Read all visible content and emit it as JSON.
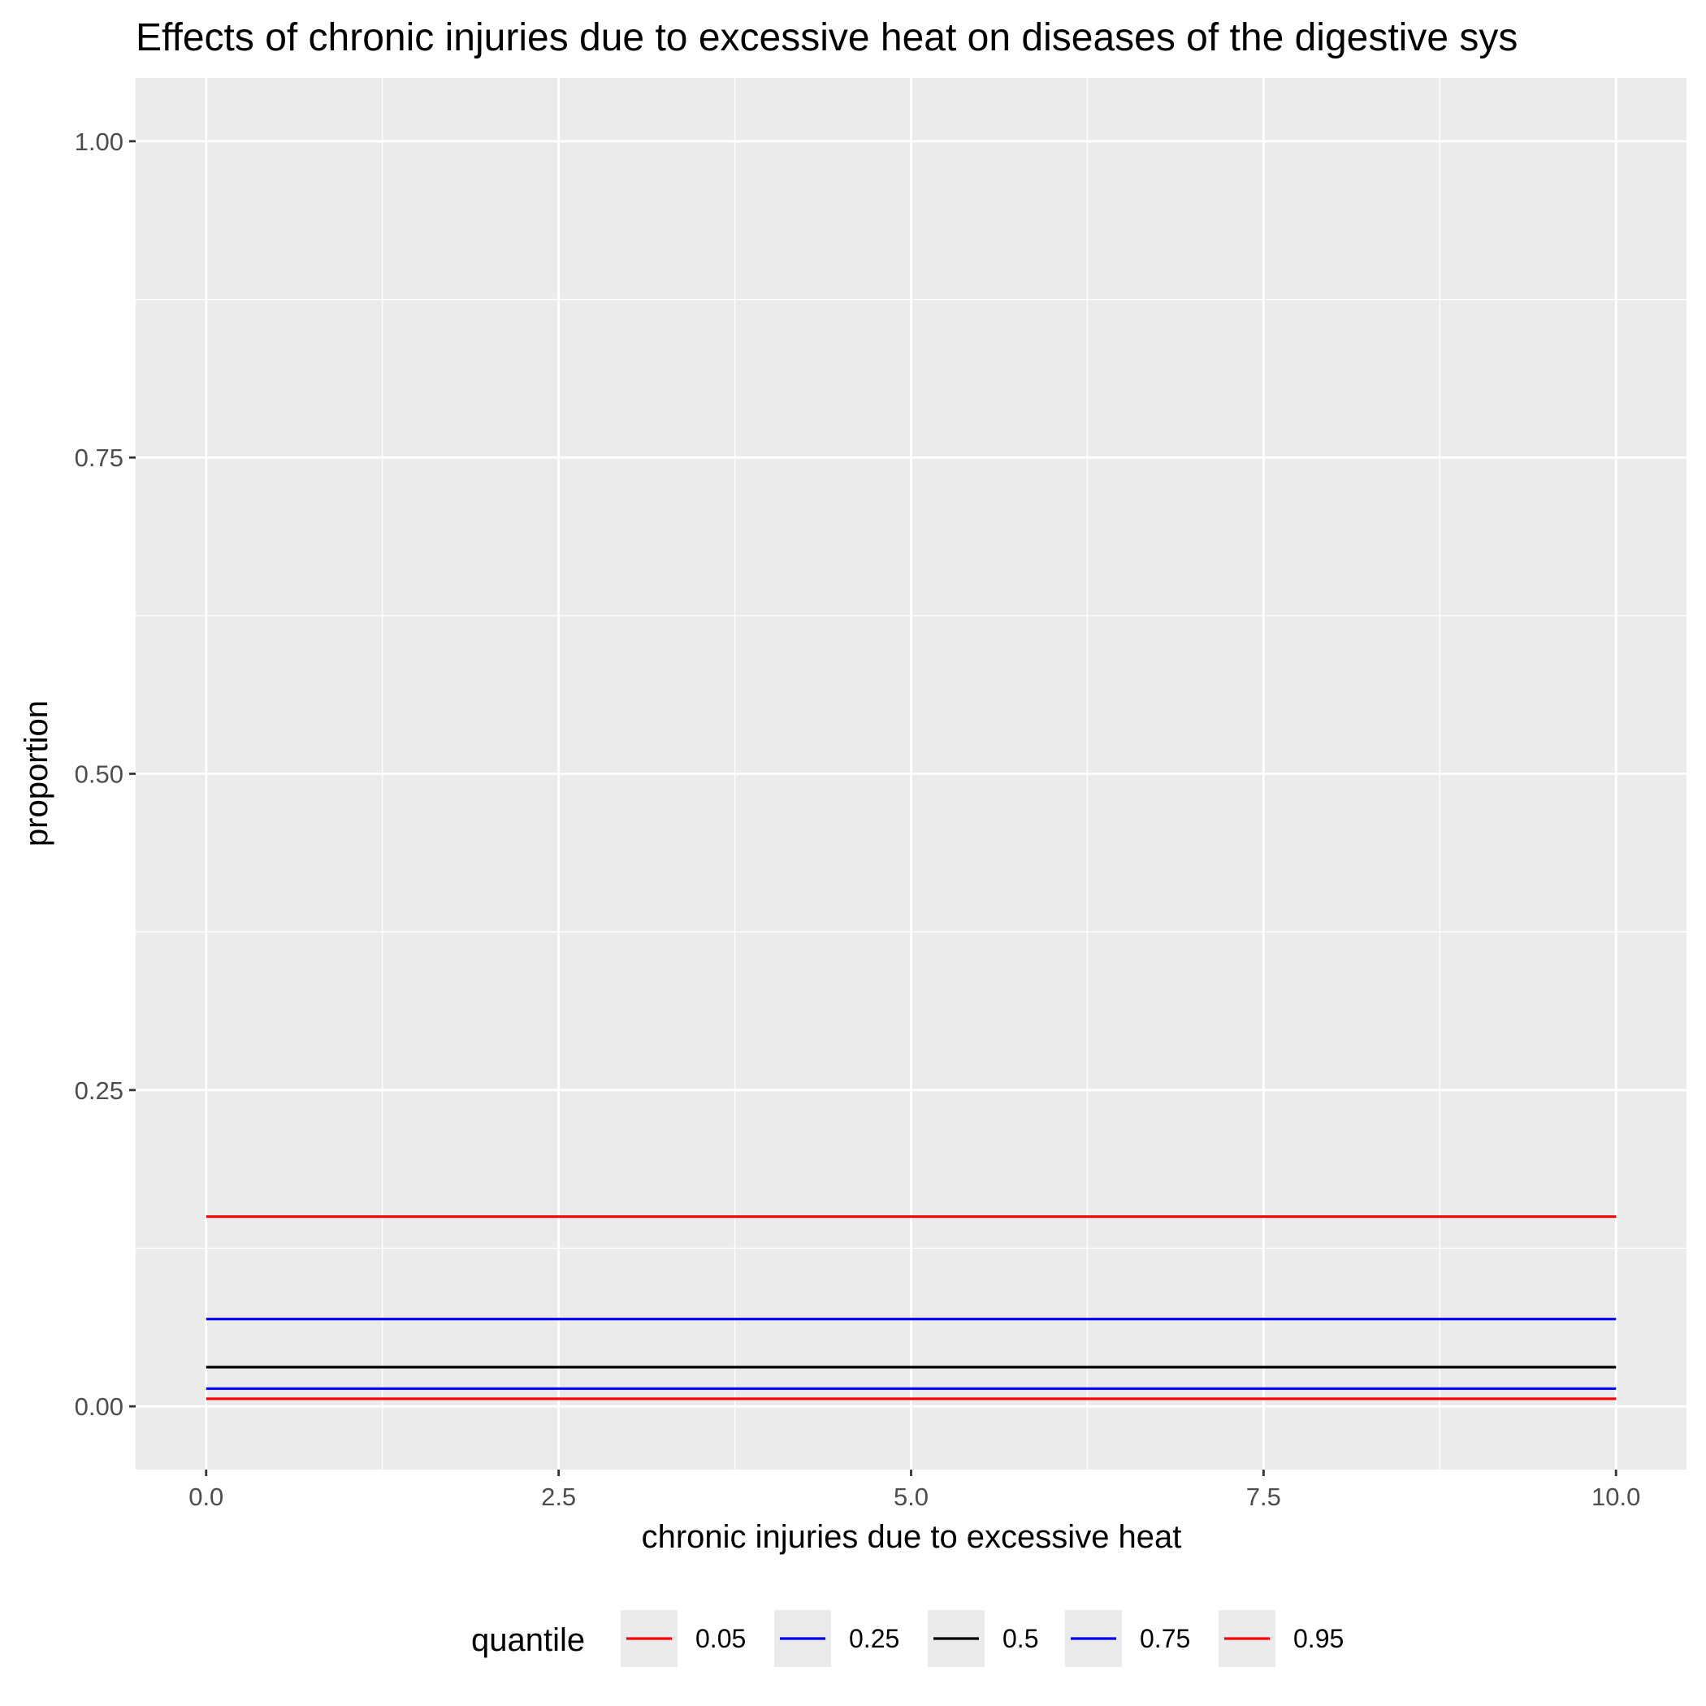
{
  "chart_data": {
    "type": "line",
    "title": "Effects of chronic injuries due to excessive heat on diseases of the digestive sys",
    "xlabel": "chronic injuries due to excessive heat",
    "ylabel": "proportion",
    "xlim": [
      -0.5,
      10.5
    ],
    "ylim": [
      -0.05,
      1.05
    ],
    "x_ticks": [
      0,
      2.5,
      5,
      7.5,
      10
    ],
    "x_tick_labels": [
      "0.0",
      "2.5",
      "5.0",
      "7.5",
      "10.0"
    ],
    "y_ticks": [
      0,
      0.25,
      0.5,
      0.75,
      1
    ],
    "y_tick_labels": [
      "0.00",
      "0.25",
      "0.50",
      "0.75",
      "1.00"
    ],
    "grid": true,
    "legend": {
      "title": "quantile",
      "position": "bottom"
    },
    "series": [
      {
        "name": "0.05",
        "color": "#ff0000",
        "x": [
          0,
          10
        ],
        "y": [
          0.006,
          0.006
        ]
      },
      {
        "name": "0.25",
        "color": "#0000ff",
        "x": [
          0,
          10
        ],
        "y": [
          0.014,
          0.014
        ]
      },
      {
        "name": "0.5",
        "color": "#000000",
        "x": [
          0,
          10
        ],
        "y": [
          0.031,
          0.031
        ]
      },
      {
        "name": "0.75",
        "color": "#0000ff",
        "x": [
          0,
          10
        ],
        "y": [
          0.069,
          0.069
        ]
      },
      {
        "name": "0.95",
        "color": "#ff0000",
        "x": [
          0,
          10
        ],
        "y": [
          0.15,
          0.15
        ]
      }
    ]
  }
}
